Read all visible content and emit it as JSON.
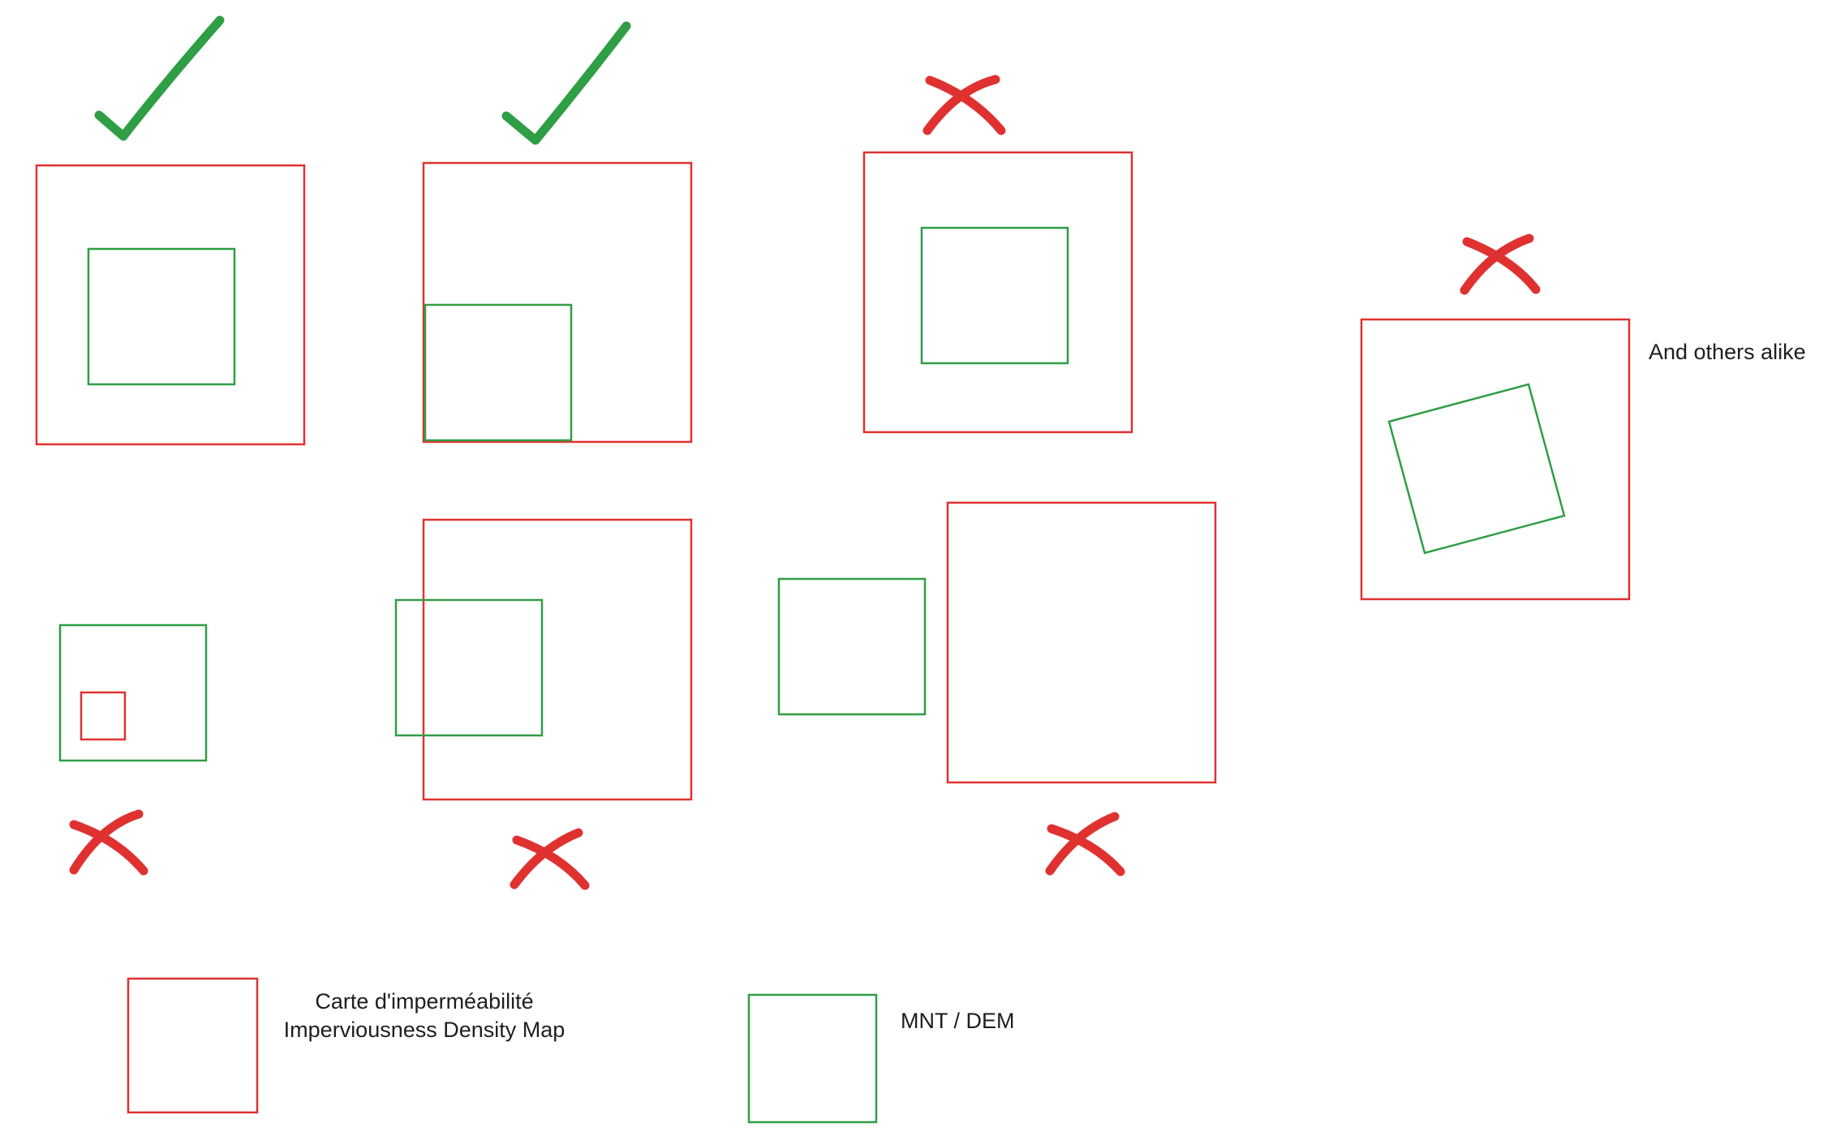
{
  "colors": {
    "ok": "#2f9e44",
    "bad": "#e03131",
    "mnt_box": "#2f9e44",
    "density_box": "#e03131",
    "text": "#1e1e1e"
  },
  "annotations": {
    "others": "And others alike"
  },
  "legend": {
    "density_map": {
      "line1": "Carte d'imperméabilité",
      "line2": "Imperviousness Density Map"
    },
    "dem": {
      "label": "MNT / DEM"
    }
  },
  "cases": [
    {
      "id": "green-centered-inside-red",
      "verdict": "valid",
      "mark": "check-icon"
    },
    {
      "id": "green-in-bottom-left-corner-of-red",
      "verdict": "valid",
      "mark": "check-icon"
    },
    {
      "id": "green-inside-red-offset",
      "verdict": "invalid",
      "mark": "cross-icon"
    },
    {
      "id": "green-rotated-inside-red",
      "verdict": "invalid",
      "mark": "cross-icon"
    },
    {
      "id": "red-inside-green",
      "verdict": "invalid",
      "mark": "cross-icon"
    },
    {
      "id": "green-partially-overlapping-red",
      "verdict": "invalid",
      "mark": "cross-icon"
    },
    {
      "id": "green-outside-red",
      "verdict": "invalid",
      "mark": "cross-icon"
    }
  ]
}
